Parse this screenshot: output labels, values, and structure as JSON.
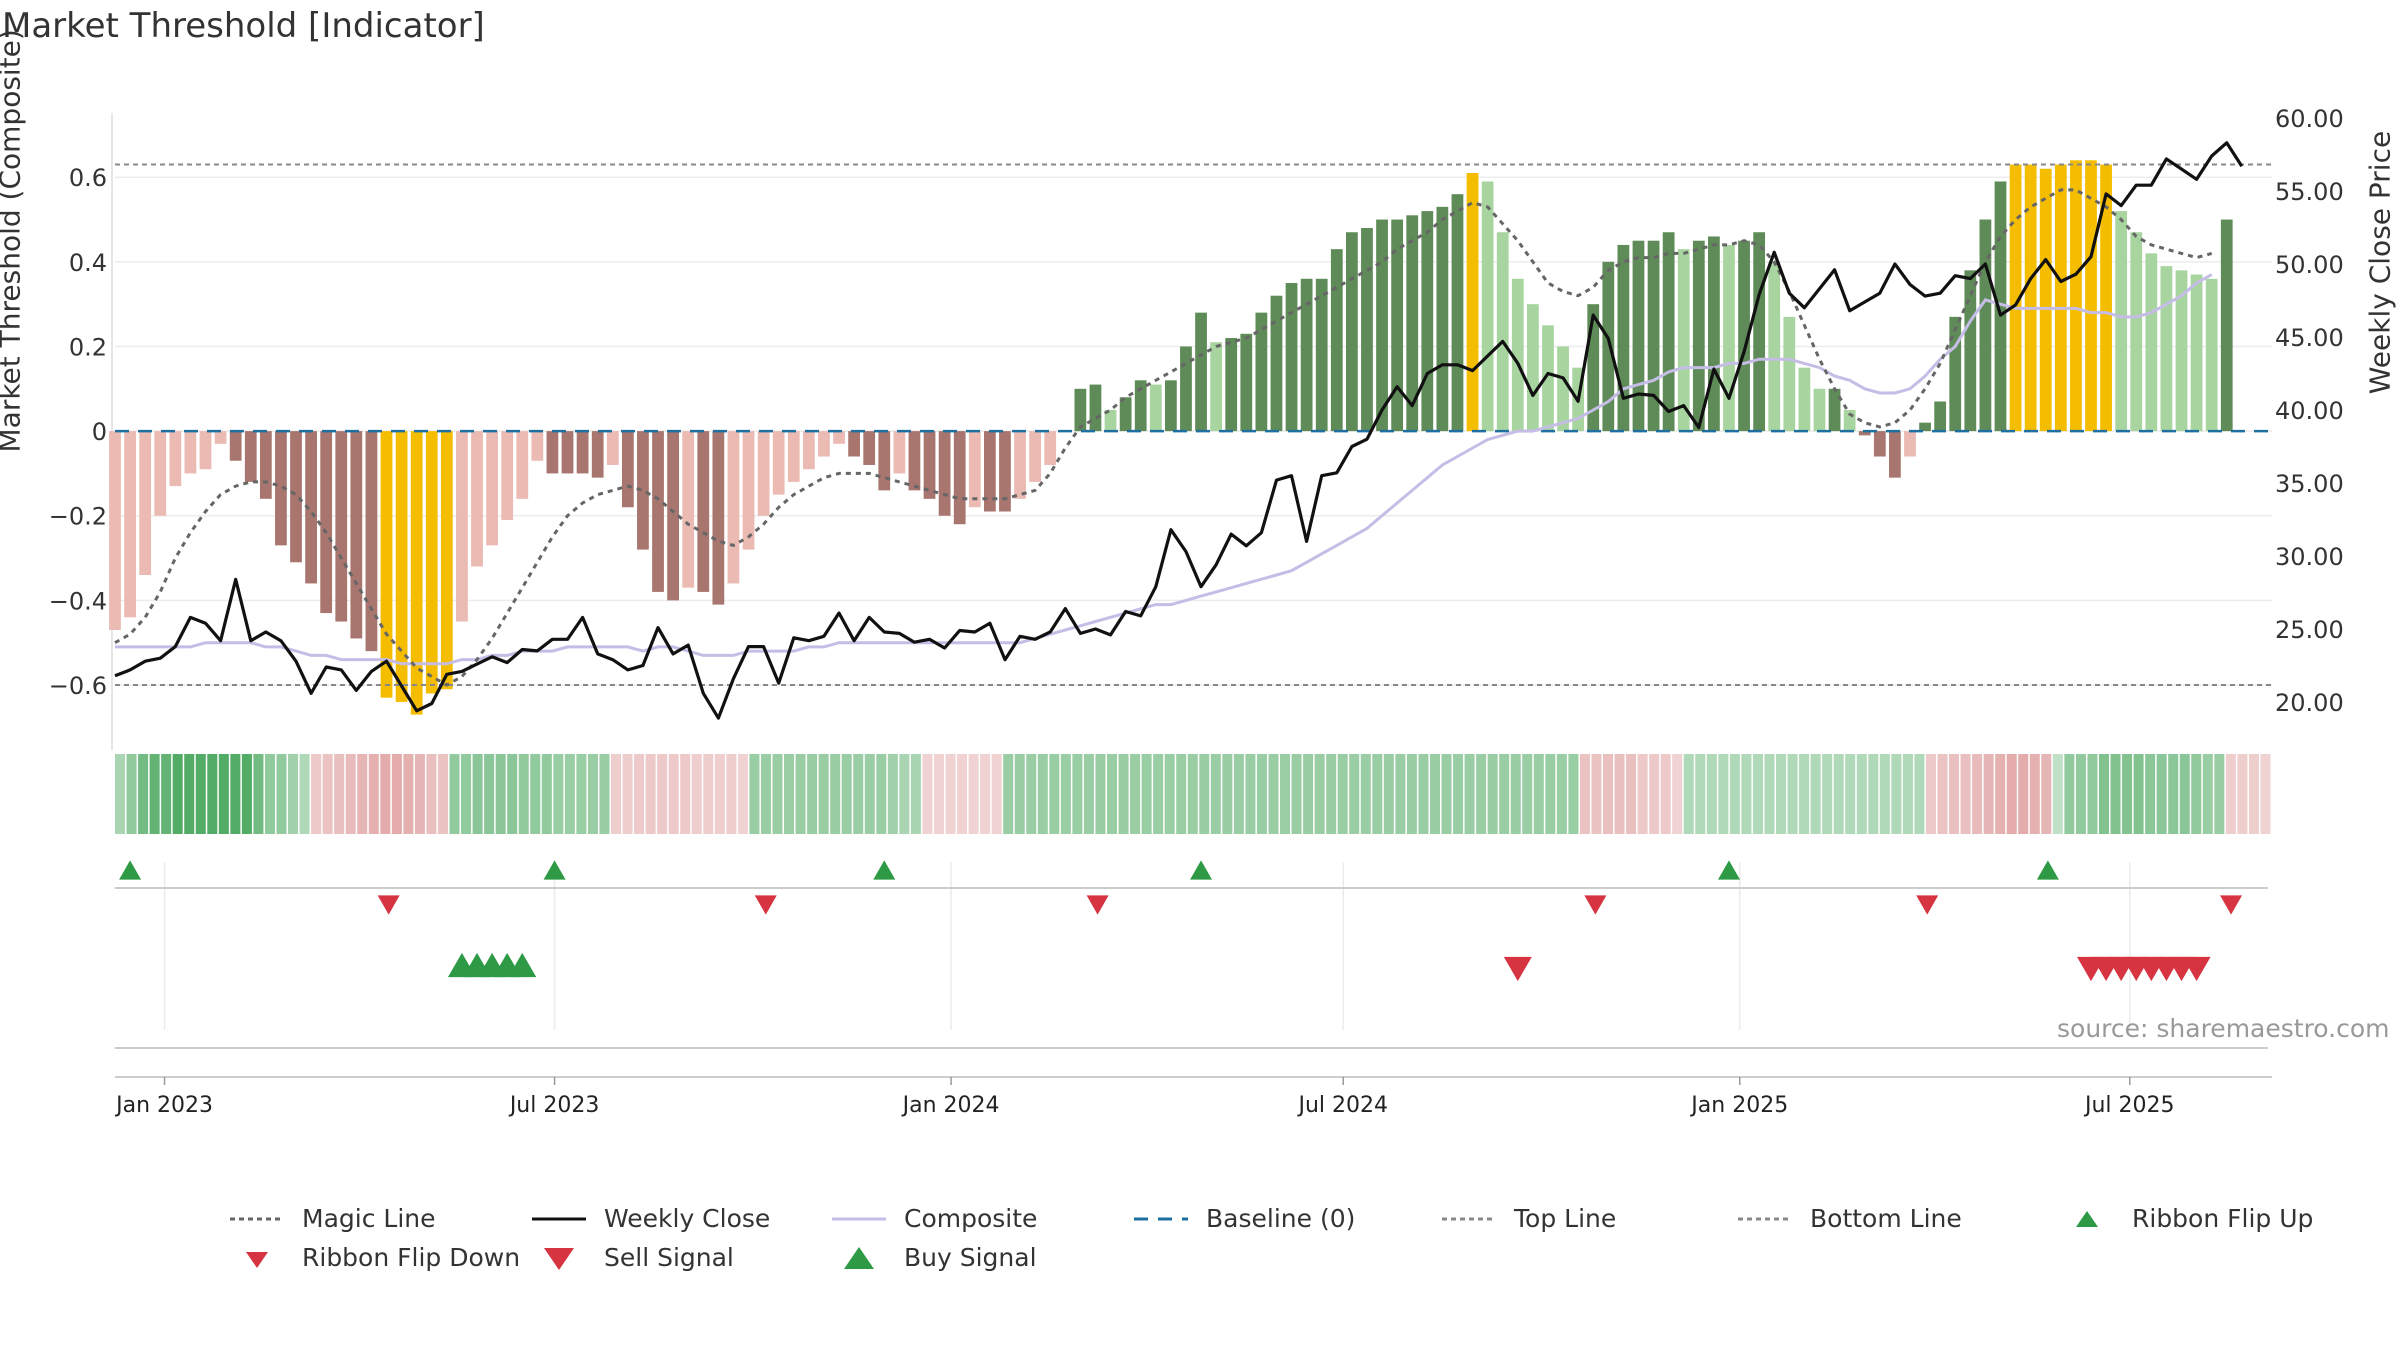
{
  "title": "Market Threshold [Indicator]",
  "source_note": "source: sharemaestro.com",
  "colors": {
    "magic": "#666666",
    "close": "#111111",
    "composite": "#c5bde6",
    "baseline": "#1f6fa0",
    "threshold": "#888888",
    "pos_strong": "#5e8b57",
    "pos_light": "#a8d49f",
    "neg_strong": "#a8756f",
    "neg_light": "#eabab3",
    "extreme": "#f5bd00",
    "buy": "#2e9a45",
    "sell": "#d63441"
  },
  "chart_data": {
    "type": "bar",
    "title": "Market Threshold [Indicator]",
    "ylabel": "Market Threshold (Composite)",
    "y2label": "Weekly Close Price",
    "ylim": [
      -0.73,
      0.74
    ],
    "y2lim": [
      17.4,
      60.0
    ],
    "yticks": [
      "0.6",
      "0.4",
      "0.2",
      "0",
      "−0.2",
      "−0.4",
      "−0.6"
    ],
    "y2ticks": [
      "60.00",
      "55.00",
      "50.00",
      "45.00",
      "40.00",
      "35.00",
      "30.00",
      "25.00",
      "20.00"
    ],
    "x_range": [
      "2022-12-09",
      "2025-09-05"
    ],
    "xticks": [
      {
        "date": "2023-01-01",
        "label": "Jan 2023"
      },
      {
        "date": "2023-07-01",
        "label": "Jul 2023"
      },
      {
        "date": "2024-01-01",
        "label": "Jan 2024"
      },
      {
        "date": "2024-07-01",
        "label": "Jul 2024"
      },
      {
        "date": "2025-01-01",
        "label": "Jan 2025"
      },
      {
        "date": "2025-07-01",
        "label": "Jul 2025"
      }
    ],
    "start_week": "2022-12-09",
    "top_line": 0.63,
    "bottom_line": -0.6,
    "histogram": [
      -0.47,
      -0.44,
      -0.34,
      -0.2,
      -0.13,
      -0.1,
      -0.09,
      -0.03,
      -0.07,
      -0.12,
      -0.16,
      -0.27,
      -0.31,
      -0.36,
      -0.43,
      -0.45,
      -0.49,
      -0.52,
      -0.63,
      -0.64,
      -0.67,
      -0.62,
      -0.61,
      -0.45,
      -0.32,
      -0.27,
      -0.21,
      -0.16,
      -0.07,
      -0.1,
      -0.1,
      -0.1,
      -0.11,
      -0.08,
      -0.18,
      -0.28,
      -0.38,
      -0.4,
      -0.37,
      -0.38,
      -0.41,
      -0.36,
      -0.28,
      -0.2,
      -0.15,
      -0.12,
      -0.09,
      -0.06,
      -0.03,
      -0.06,
      -0.08,
      -0.14,
      -0.1,
      -0.14,
      -0.16,
      -0.2,
      -0.22,
      -0.18,
      -0.19,
      -0.19,
      -0.16,
      -0.12,
      -0.08,
      0.0,
      0.1,
      0.11,
      0.05,
      0.08,
      0.12,
      0.11,
      0.12,
      0.2,
      0.28,
      0.21,
      0.22,
      0.23,
      0.28,
      0.32,
      0.35,
      0.36,
      0.36,
      0.43,
      0.47,
      0.48,
      0.5,
      0.5,
      0.51,
      0.52,
      0.53,
      0.56,
      0.61,
      0.59,
      0.47,
      0.36,
      0.3,
      0.25,
      0.2,
      0.15,
      0.3,
      0.4,
      0.44,
      0.45,
      0.45,
      0.47,
      0.43,
      0.45,
      0.46,
      0.44,
      0.45,
      0.47,
      0.4,
      0.27,
      0.15,
      0.1,
      0.1,
      0.05,
      -0.01,
      -0.06,
      -0.11,
      -0.06,
      0.02,
      0.07,
      0.27,
      0.38,
      0.5,
      0.59,
      0.63,
      0.63,
      0.62,
      0.63,
      0.64,
      0.64,
      0.63,
      0.52,
      0.47,
      0.42,
      0.39,
      0.38,
      0.37,
      0.36,
      0.5
    ],
    "magic_line": [
      -0.5,
      -0.48,
      -0.44,
      -0.38,
      -0.3,
      -0.24,
      -0.19,
      -0.15,
      -0.13,
      -0.12,
      -0.12,
      -0.13,
      -0.15,
      -0.19,
      -0.24,
      -0.3,
      -0.36,
      -0.42,
      -0.48,
      -0.52,
      -0.56,
      -0.58,
      -0.6,
      -0.58,
      -0.54,
      -0.49,
      -0.43,
      -0.37,
      -0.31,
      -0.25,
      -0.2,
      -0.17,
      -0.15,
      -0.14,
      -0.13,
      -0.14,
      -0.16,
      -0.19,
      -0.22,
      -0.24,
      -0.26,
      -0.27,
      -0.25,
      -0.22,
      -0.18,
      -0.15,
      -0.13,
      -0.11,
      -0.1,
      -0.1,
      -0.1,
      -0.11,
      -0.12,
      -0.13,
      -0.14,
      -0.15,
      -0.16,
      -0.16,
      -0.16,
      -0.16,
      -0.15,
      -0.14,
      -0.1,
      -0.04,
      0.01,
      0.03,
      0.05,
      0.08,
      0.1,
      0.12,
      0.14,
      0.16,
      0.18,
      0.2,
      0.21,
      0.22,
      0.24,
      0.26,
      0.28,
      0.3,
      0.32,
      0.34,
      0.36,
      0.38,
      0.4,
      0.43,
      0.45,
      0.47,
      0.5,
      0.52,
      0.54,
      0.53,
      0.49,
      0.45,
      0.4,
      0.35,
      0.33,
      0.32,
      0.34,
      0.38,
      0.4,
      0.41,
      0.41,
      0.42,
      0.42,
      0.43,
      0.44,
      0.44,
      0.45,
      0.44,
      0.4,
      0.33,
      0.25,
      0.17,
      0.1,
      0.04,
      0.02,
      0.01,
      0.02,
      0.05,
      0.1,
      0.16,
      0.24,
      0.32,
      0.4,
      0.46,
      0.5,
      0.53,
      0.55,
      0.57,
      0.57,
      0.55,
      0.53,
      0.5,
      0.46,
      0.44,
      0.43,
      0.42,
      0.41,
      0.42
    ],
    "composite": [
      -0.51,
      -0.51,
      -0.51,
      -0.51,
      -0.51,
      -0.51,
      -0.5,
      -0.5,
      -0.5,
      -0.5,
      -0.51,
      -0.51,
      -0.52,
      -0.53,
      -0.53,
      -0.54,
      -0.54,
      -0.54,
      -0.54,
      -0.55,
      -0.55,
      -0.55,
      -0.55,
      -0.54,
      -0.54,
      -0.53,
      -0.53,
      -0.52,
      -0.52,
      -0.52,
      -0.51,
      -0.51,
      -0.51,
      -0.51,
      -0.51,
      -0.52,
      -0.51,
      -0.51,
      -0.52,
      -0.53,
      -0.53,
      -0.53,
      -0.52,
      -0.52,
      -0.52,
      -0.52,
      -0.51,
      -0.51,
      -0.5,
      -0.5,
      -0.5,
      -0.5,
      -0.5,
      -0.5,
      -0.5,
      -0.5,
      -0.5,
      -0.5,
      -0.5,
      -0.5,
      -0.5,
      -0.49,
      -0.48,
      -0.47,
      -0.46,
      -0.45,
      -0.44,
      -0.43,
      -0.42,
      -0.41,
      -0.41,
      -0.4,
      -0.39,
      -0.38,
      -0.37,
      -0.36,
      -0.35,
      -0.34,
      -0.33,
      -0.31,
      -0.29,
      -0.27,
      -0.25,
      -0.23,
      -0.2,
      -0.17,
      -0.14,
      -0.11,
      -0.08,
      -0.06,
      -0.04,
      -0.02,
      -0.01,
      0.0,
      0.0,
      0.01,
      0.02,
      0.03,
      0.05,
      0.07,
      0.1,
      0.11,
      0.12,
      0.14,
      0.15,
      0.15,
      0.15,
      0.16,
      0.16,
      0.17,
      0.17,
      0.17,
      0.16,
      0.15,
      0.13,
      0.12,
      0.1,
      0.09,
      0.09,
      0.1,
      0.13,
      0.17,
      0.2,
      0.26,
      0.31,
      0.3,
      0.29,
      0.29,
      0.29,
      0.29,
      0.29,
      0.28,
      0.28,
      0.27,
      0.27,
      0.28,
      0.3,
      0.32,
      0.35,
      0.37
    ],
    "weekly_close": [
      21.8,
      22.2,
      22.8,
      23.0,
      23.8,
      25.8,
      25.4,
      24.2,
      28.4,
      24.2,
      24.8,
      24.2,
      22.8,
      20.6,
      22.4,
      22.2,
      20.8,
      22.1,
      22.8,
      21.1,
      19.4,
      19.9,
      21.9,
      22.1,
      22.6,
      23.1,
      22.7,
      23.6,
      23.5,
      24.3,
      24.3,
      25.8,
      23.3,
      22.9,
      22.2,
      22.5,
      25.1,
      23.3,
      23.9,
      20.6,
      18.9,
      21.6,
      23.8,
      23.8,
      21.3,
      24.4,
      24.2,
      24.5,
      26.1,
      24.2,
      25.8,
      24.8,
      24.7,
      24.1,
      24.3,
      23.7,
      24.9,
      24.8,
      25.4,
      22.9,
      24.5,
      24.3,
      24.8,
      26.4,
      24.7,
      25.0,
      24.6,
      26.2,
      25.9,
      27.9,
      31.8,
      30.3,
      27.9,
      29.4,
      31.5,
      30.7,
      31.6,
      35.2,
      35.5,
      31.0,
      35.5,
      35.7,
      37.5,
      38.0,
      40.0,
      41.6,
      40.3,
      42.5,
      43.1,
      43.1,
      42.7,
      43.7,
      44.7,
      43.2,
      41.0,
      42.5,
      42.2,
      40.6,
      46.5,
      44.9,
      40.8,
      41.1,
      41.0,
      39.9,
      40.3,
      38.8,
      42.8,
      40.8,
      44.0,
      47.9,
      50.8,
      48.0,
      47.0,
      48.3,
      49.6,
      46.8,
      47.4,
      48.0,
      50.0,
      48.6,
      47.8,
      48.0,
      49.2,
      49.0,
      50.0,
      46.5,
      47.2,
      49.0,
      50.3,
      48.8,
      49.3,
      50.5,
      54.8,
      54.0,
      55.4,
      55.4,
      57.2,
      56.5,
      55.8,
      57.4,
      58.3,
      56.7
    ],
    "ribbon_scale": [
      -1,
      1
    ],
    "ribbon": [
      0.35,
      0.5,
      0.7,
      0.8,
      0.8,
      0.9,
      0.9,
      0.9,
      0.9,
      0.9,
      0.9,
      0.9,
      0.7,
      0.5,
      0.5,
      0.4,
      0.3,
      -0.3,
      -0.35,
      -0.4,
      -0.45,
      -0.5,
      -0.55,
      -0.6,
      -0.6,
      -0.55,
      -0.5,
      -0.4,
      -0.35,
      0.5,
      0.5,
      0.55,
      0.55,
      0.55,
      0.55,
      0.5,
      0.5,
      0.5,
      0.45,
      0.45,
      0.45,
      0.45,
      0.45,
      -0.25,
      -0.25,
      -0.3,
      -0.3,
      -0.3,
      -0.3,
      -0.3,
      -0.25,
      -0.25,
      -0.25,
      -0.25,
      -0.2,
      0.45,
      0.45,
      0.45,
      0.45,
      0.45,
      0.45,
      0.45,
      0.45,
      0.45,
      0.45,
      0.45,
      0.45,
      0.4,
      0.35,
      0.35,
      -0.2,
      -0.2,
      -0.2,
      -0.2,
      -0.2,
      -0.2,
      -0.2,
      0.45,
      0.45,
      0.45,
      0.45,
      0.45,
      0.45,
      0.45,
      0.45,
      0.45,
      0.45,
      0.45,
      0.45,
      0.45,
      0.45,
      0.45,
      0.45,
      0.45,
      0.45,
      0.45,
      0.45,
      0.45,
      0.45,
      0.45,
      0.45,
      0.45,
      0.45,
      0.45,
      0.45,
      0.45,
      0.45,
      0.45,
      0.45,
      0.45,
      0.45,
      0.45,
      0.45,
      0.45,
      0.45,
      0.45,
      0.45,
      0.45,
      0.45,
      0.45,
      0.45,
      0.45,
      0.45,
      0.45,
      0.45,
      0.45,
      0.45,
      -0.35,
      -0.35,
      -0.4,
      -0.4,
      -0.4,
      -0.3,
      -0.3,
      -0.3,
      -0.2,
      0.3,
      0.3,
      0.3,
      0.3,
      0.3,
      0.3,
      0.3,
      0.3,
      0.3,
      0.3,
      0.3,
      0.3,
      0.3,
      0.3,
      0.3,
      0.3,
      0.3,
      0.3,
      0.3,
      0.3,
      0.3,
      -0.3,
      -0.35,
      -0.4,
      -0.4,
      -0.45,
      -0.5,
      -0.55,
      -0.6,
      -0.6,
      -0.55,
      -0.5,
      0.2,
      0.5,
      0.5,
      0.5,
      0.6,
      0.6,
      0.6,
      0.6,
      0.55,
      0.55,
      0.55,
      0.55,
      0.5,
      0.45,
      0.45,
      -0.25,
      -0.25,
      -0.25,
      -0.2
    ],
    "ribbon_flip_up": [
      "2022-12-16",
      "2023-07-01",
      "2023-12-01",
      "2024-04-26",
      "2024-12-27",
      "2025-05-24"
    ],
    "ribbon_flip_down": [
      "2023-04-15",
      "2023-10-07",
      "2024-03-09",
      "2024-10-26",
      "2025-03-29",
      "2025-08-17"
    ],
    "buy_signals": [
      "2023-05-19",
      "2023-05-26",
      "2023-06-02",
      "2023-06-09",
      "2023-06-16"
    ],
    "sell_signals": [
      "2024-09-20",
      "2025-06-13",
      "2025-06-20",
      "2025-06-27",
      "2025-07-04",
      "2025-07-11",
      "2025-07-18",
      "2025-07-25",
      "2025-08-01"
    ]
  },
  "legend": [
    {
      "label": "Magic Line",
      "kind": "dotted",
      "color": "#666666"
    },
    {
      "label": "Weekly Close",
      "kind": "solid",
      "color": "#111111"
    },
    {
      "label": "Composite",
      "kind": "solid",
      "color": "#c5bde6"
    },
    {
      "label": "Baseline (0)",
      "kind": "dashed",
      "color": "#1f6fa0"
    },
    {
      "label": "Top Line",
      "kind": "dotted",
      "color": "#888888"
    },
    {
      "label": "Bottom Line",
      "kind": "dotted",
      "color": "#888888"
    },
    {
      "label": "Ribbon Flip Up",
      "kind": "tri-up-small",
      "color": "#2e9a45"
    },
    {
      "label": "Ribbon Flip Down",
      "kind": "tri-down-small",
      "color": "#d63441"
    },
    {
      "label": "Sell Signal",
      "kind": "tri-down",
      "color": "#d63441"
    },
    {
      "label": "Buy Signal",
      "kind": "tri-up",
      "color": "#2e9a45"
    }
  ]
}
